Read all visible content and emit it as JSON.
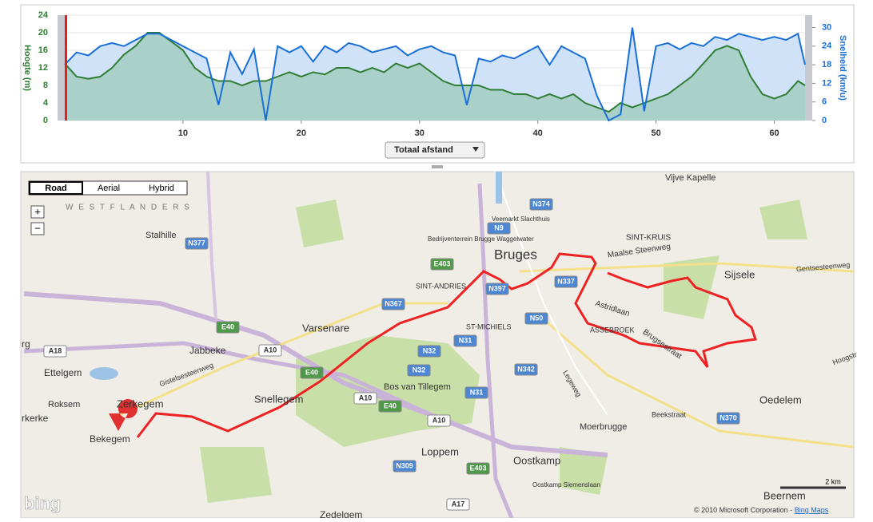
{
  "chart_data": {
    "type": "line",
    "ylabel": "Hoogte (m)",
    "y2label": "Snelheid (km/u)",
    "x": [
      0,
      1,
      2,
      3,
      4,
      5,
      6,
      7,
      8,
      9,
      10,
      11,
      12,
      13,
      14,
      15,
      16,
      17,
      18,
      19,
      20,
      21,
      22,
      23,
      24,
      25,
      26,
      27,
      28,
      29,
      30,
      31,
      32,
      33,
      34,
      35,
      36,
      37,
      38,
      39,
      40,
      41,
      42,
      43,
      44,
      45,
      46,
      47,
      48,
      49,
      50,
      51,
      52,
      53,
      54,
      55,
      56,
      57,
      58,
      59,
      60,
      61,
      62,
      62.6
    ],
    "series": [
      {
        "name": "Hoogte",
        "color": "#2e7d32",
        "fill": "#a9d0c9",
        "values": [
          13,
          10,
          9.5,
          10,
          12,
          15,
          17,
          20,
          20,
          18,
          16,
          12,
          10,
          9,
          9,
          8,
          9,
          9,
          10,
          11,
          10,
          11,
          10.5,
          12,
          12,
          11,
          12,
          11,
          13,
          12,
          13,
          11,
          9,
          8,
          8,
          8,
          7,
          7,
          6,
          6,
          5,
          6,
          5,
          6,
          4,
          3,
          2,
          4,
          3,
          4,
          5,
          6,
          8,
          10,
          13,
          16,
          17,
          16,
          10,
          6,
          5,
          6,
          9,
          8
        ]
      },
      {
        "name": "Snelheid",
        "color": "#1a6fd6",
        "fill": "#cfe2f8",
        "axis": "y2",
        "values": [
          18,
          22,
          21,
          24,
          25,
          24,
          26,
          28,
          28,
          26,
          24,
          22,
          20,
          5,
          22,
          15,
          23,
          0,
          24,
          22,
          24,
          19,
          24,
          22,
          25,
          24,
          22,
          23,
          24,
          21,
          23,
          24,
          22,
          21,
          5,
          20,
          19,
          21,
          20,
          22,
          24,
          18,
          24,
          22,
          20,
          8,
          0,
          2,
          30,
          3,
          24,
          25,
          23,
          25,
          24,
          27,
          26,
          28,
          27,
          26,
          27,
          26,
          28,
          18
        ]
      }
    ],
    "xlim": [
      0,
      62.6
    ],
    "xticks": [
      10,
      20,
      30,
      40,
      50,
      60
    ],
    "ylim": [
      0,
      24
    ],
    "yticks": [
      0,
      4,
      8,
      12,
      16,
      20,
      24
    ],
    "y2lim": [
      0,
      34
    ],
    "y2ticks": [
      0,
      6,
      12,
      18,
      24,
      30
    ],
    "grid": true,
    "marker_x": 0.1
  },
  "dropdown": "Totaal afstand",
  "map": {
    "buttons": [
      "Road",
      "Aerial",
      "Hybrid"
    ],
    "zoom": [
      "+",
      "−"
    ],
    "region": "W E S T   F L A N D E R S",
    "places": [
      "Stalhille",
      "Jabbeke",
      "Varsenare",
      "Bruges",
      "SINT-KRUIS",
      "Sijsele",
      "Ettelgem",
      "Zerkegem",
      "Snellegem",
      "Roksem",
      "Bekegem",
      "Loppem",
      "Oostkamp",
      "Moerbrugge",
      "Oedelem",
      "Beernem",
      "Vijve Kapelle",
      "SINT-ANDRIES",
      "ST-MICHIELS",
      "Bos van Tillegem",
      "ASSEBROEK",
      "Astridlaan",
      "Maalse Steenweg",
      "Gentsesteenweg",
      "Brugsestraat",
      "Beekstraat",
      "Legeweg",
      "Gistelsesteenweg",
      "Zedelgem",
      "Bedrijventerrein Brugge Waggelwater",
      "Veemarkt Slachthuis",
      "Oostkamp Siemenslaan",
      "rkerke",
      "rg",
      "Hoogstr"
    ],
    "shields": [
      "N377",
      "N367",
      "N32",
      "N32",
      "N31",
      "N31",
      "N50",
      "N342",
      "N370",
      "N374",
      "N9",
      "N397",
      "N337",
      "E403",
      "E403",
      "E40",
      "E40",
      "E40",
      "A10",
      "A10",
      "A10",
      "A18",
      "N309",
      "A17"
    ],
    "scale": "2 km",
    "copyright": "© 2010 Microsoft Corporation - ",
    "copyright_link": "Bing Maps",
    "logo": "bing"
  }
}
